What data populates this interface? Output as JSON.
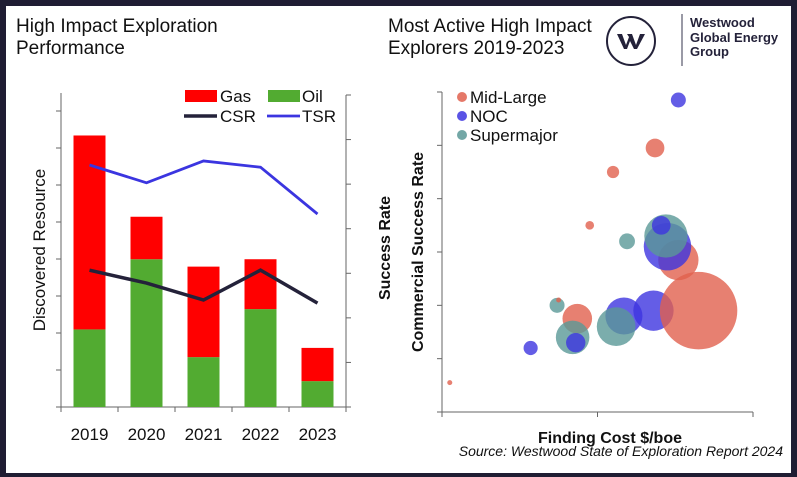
{
  "window": {
    "titles": {
      "left": "High Impact Exploration Performance",
      "right": "Most Active High Impact Explorers 2019-2023"
    },
    "logo": {
      "mark": "W",
      "lines": [
        "Westwood",
        "Global Energy",
        "Group"
      ]
    },
    "source": "Source: Westwood State of Exploration Report 2024"
  },
  "colors": {
    "gas": "#ff0000",
    "oil": "#52ab31",
    "csr": "#24223a",
    "tsr": "#3b35e0",
    "mid_large": "#e1604d",
    "noc": "#3d35e0",
    "supermajor": "#5a9897",
    "axis": "#666666",
    "background": "#1f1d33"
  },
  "chart_data": [
    {
      "type": "bar",
      "stacked": true,
      "title": "High Impact Exploration Performance",
      "xlabel": "",
      "ylabel": "Discovered Resource",
      "y2label": "",
      "categories": [
        "2019",
        "2020",
        "2021",
        "2022",
        "2023"
      ],
      "series": [
        {
          "name": "Oil",
          "kind": "bar",
          "axis": "left",
          "values": [
            2.1,
            4.0,
            1.35,
            2.65,
            0.7
          ]
        },
        {
          "name": "Gas",
          "kind": "bar",
          "axis": "left",
          "values": [
            5.25,
            1.15,
            2.45,
            1.35,
            0.9
          ]
        },
        {
          "name": "CSR",
          "kind": "line",
          "axis": "right",
          "values": [
            3.07,
            2.78,
            2.4,
            3.07,
            2.33
          ]
        },
        {
          "name": "TSR",
          "kind": "line",
          "axis": "right",
          "values": [
            5.43,
            5.03,
            5.52,
            5.38,
            4.33
          ]
        }
      ],
      "ylim": [
        0,
        8.5
      ],
      "y2lim": [
        0,
        7
      ],
      "yticks_count": 9,
      "y2ticks_count": 8,
      "tick_labels_shown": false,
      "legend": {
        "position": "top-right",
        "entries": [
          "Gas",
          "Oil",
          "CSR",
          "TSR"
        ]
      },
      "grid": false
    },
    {
      "type": "scatter",
      "bubble": true,
      "title": "Most Active High Impact Explorers 2019-2023",
      "xlabel": "Finding Cost $/boe",
      "ylabel": "Commercial Success Rate",
      "ylabel_outer": "Success Rate",
      "xlim": [
        0,
        2
      ],
      "ylim": [
        0,
        6
      ],
      "tick_labels_shown": false,
      "grid": false,
      "legend": {
        "position": "top-left",
        "entries": [
          "Mid-Large",
          "NOC",
          "Supermajor"
        ]
      },
      "points": [
        {
          "group": "Mid-Large",
          "x": 0.05,
          "y": 0.55,
          "size": 1
        },
        {
          "group": "NOC",
          "x": 0.57,
          "y": 1.2,
          "size": 8
        },
        {
          "group": "Supermajor",
          "x": 0.74,
          "y": 2.0,
          "size": 9
        },
        {
          "group": "Mid-Large",
          "x": 0.75,
          "y": 2.1,
          "size": 1
        },
        {
          "group": "Mid-Large",
          "x": 0.87,
          "y": 1.75,
          "size": 35
        },
        {
          "group": "Supermajor",
          "x": 0.84,
          "y": 1.4,
          "size": 45
        },
        {
          "group": "NOC",
          "x": 0.86,
          "y": 1.3,
          "size": 15
        },
        {
          "group": "NOC",
          "x": 1.17,
          "y": 1.8,
          "size": 55
        },
        {
          "group": "Supermajor",
          "x": 1.12,
          "y": 1.6,
          "size": 60
        },
        {
          "group": "NOC",
          "x": 1.36,
          "y": 1.9,
          "size": 65
        },
        {
          "group": "Mid-Large",
          "x": 1.65,
          "y": 1.9,
          "size": 240
        },
        {
          "group": "Mid-Large",
          "x": 1.52,
          "y": 2.85,
          "size": 65
        },
        {
          "group": "NOC",
          "x": 1.45,
          "y": 3.1,
          "size": 90
        },
        {
          "group": "Supermajor",
          "x": 1.44,
          "y": 3.3,
          "size": 75
        },
        {
          "group": "NOC",
          "x": 1.41,
          "y": 3.5,
          "size": 14
        },
        {
          "group": "Supermajor",
          "x": 1.19,
          "y": 3.2,
          "size": 10
        },
        {
          "group": "Mid-Large",
          "x": 0.95,
          "y": 3.5,
          "size": 3
        },
        {
          "group": "Mid-Large",
          "x": 1.1,
          "y": 4.5,
          "size": 6
        },
        {
          "group": "Mid-Large",
          "x": 1.37,
          "y": 4.95,
          "size": 14
        },
        {
          "group": "NOC",
          "x": 1.52,
          "y": 5.85,
          "size": 9
        }
      ]
    }
  ]
}
